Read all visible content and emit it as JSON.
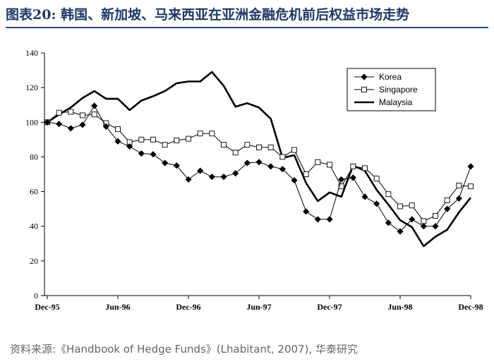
{
  "header": {
    "title": "图表20:  韩国、新加坡、马来西亚在亚洲金融危机前后权益市场走势"
  },
  "footer": {
    "source": "资料来源:《Handbook of Hedge Funds》(Lhabitant, 2007), 华泰研究"
  },
  "chart_data": {
    "type": "line",
    "ylim": [
      0,
      140
    ],
    "yticks": [
      "0",
      "20",
      "40",
      "60",
      "80",
      "100",
      "120",
      "140"
    ],
    "x_points": 37,
    "x_ticks": [
      {
        "label": "Dec-95",
        "index": 0
      },
      {
        "label": "Jun-96",
        "index": 6
      },
      {
        "label": "Dec-96",
        "index": 12
      },
      {
        "label": "Jun-97",
        "index": 18
      },
      {
        "label": "Dec-97",
        "index": 24
      },
      {
        "label": "Jun-98",
        "index": 30
      },
      {
        "label": "Dec-98",
        "index": 36
      }
    ],
    "legend_position": "top-right",
    "series": [
      {
        "name": "Korea",
        "marker": "diamond",
        "color": "#000000",
        "values": [
          100,
          99,
          96.5,
          98.5,
          109.5,
          97.5,
          89,
          86,
          82,
          81.5,
          76.5,
          75,
          67,
          72,
          68.5,
          68.5,
          70.5,
          76.5,
          77,
          74.5,
          73,
          66.5,
          48.5,
          44,
          44,
          67,
          68,
          57,
          53,
          42,
          37,
          44,
          40,
          40,
          50,
          56,
          74.5
        ]
      },
      {
        "name": "Singapore",
        "marker": "square",
        "color": "#000000",
        "values": [
          100,
          105.5,
          106,
          104,
          104.5,
          99.5,
          96,
          88.5,
          90,
          90,
          87,
          89.5,
          90.5,
          93.5,
          93.5,
          87,
          82.5,
          87,
          85.5,
          85.5,
          80,
          84,
          70,
          77,
          75.5,
          63,
          74.5,
          73.5,
          67.5,
          58.5,
          51.5,
          52,
          43,
          46,
          55,
          63.5,
          63
        ]
      },
      {
        "name": "Malaysia",
        "marker": "none",
        "color": "#000000",
        "values": [
          100,
          104.5,
          108.5,
          114,
          118,
          113.5,
          113.5,
          107,
          112.5,
          115,
          118,
          122.5,
          123.5,
          123.5,
          129,
          121,
          109,
          111,
          108.5,
          102,
          79.5,
          81,
          65,
          54.5,
          59.5,
          57,
          75,
          72,
          61,
          52.5,
          43.5,
          39.5,
          28.5,
          34,
          38,
          48,
          56.5
        ]
      }
    ]
  }
}
